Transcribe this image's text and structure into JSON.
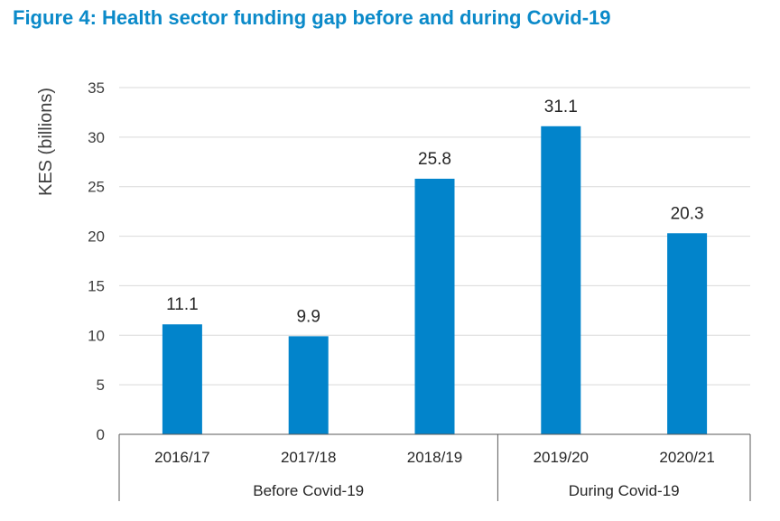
{
  "title": "Figure 4: Health sector funding gap before and during Covid-19",
  "colors": {
    "title": "#0b8ac9",
    "bar": "#0284cb",
    "grid": "#d9d9d9",
    "axis": "#595959"
  },
  "chart_data": {
    "type": "bar",
    "title": "Figure 4: Health sector funding gap before and during Covid-19",
    "ylabel": "KES (billions)",
    "xlabel": "",
    "ylim": [
      0,
      35
    ],
    "yticks": [
      0,
      5,
      10,
      15,
      20,
      25,
      30,
      35
    ],
    "grid": true,
    "categories": [
      "2016/17",
      "2017/18",
      "2018/19",
      "2019/20",
      "2020/21"
    ],
    "values": [
      11.1,
      9.9,
      25.8,
      31.1,
      20.3
    ],
    "data_labels": [
      "11.1",
      "9.9",
      "25.8",
      "31.1",
      "20.3"
    ],
    "groups": [
      {
        "label": "Before Covid-19",
        "categories": [
          "2016/17",
          "2017/18",
          "2018/19"
        ]
      },
      {
        "label": "During Covid-19",
        "categories": [
          "2019/20",
          "2020/21"
        ]
      }
    ]
  }
}
